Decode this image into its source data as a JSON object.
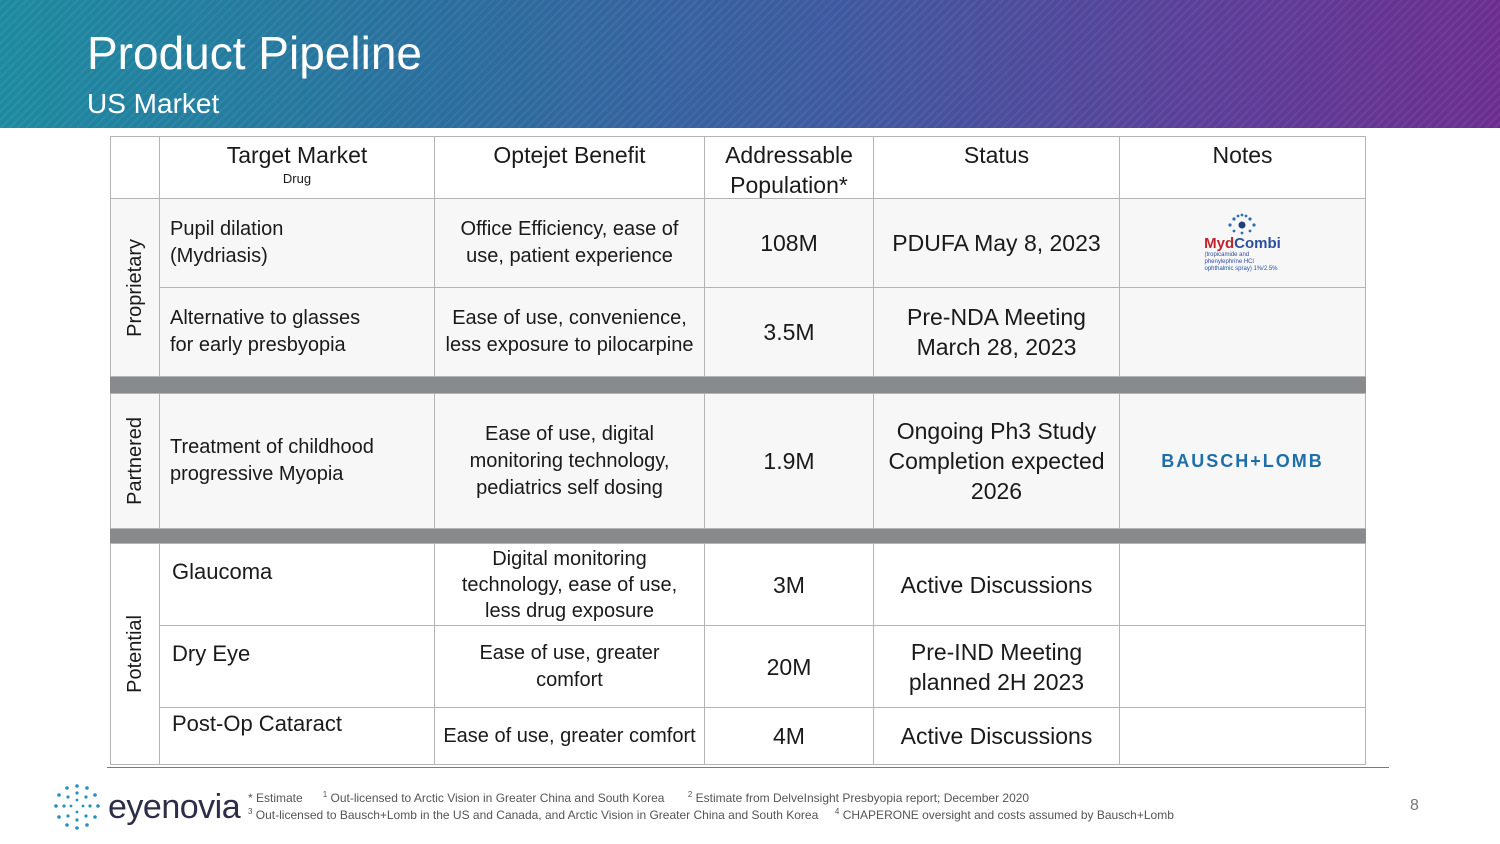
{
  "header": {
    "title": "Product Pipeline",
    "subtitle": "US Market"
  },
  "columns": {
    "target_market": "Target Market",
    "target_market_sub": "Drug",
    "optejet_benefit": "Optejet Benefit",
    "addressable_line1": "Addressable",
    "addressable_line2": "Population*",
    "status": "Status",
    "notes": "Notes"
  },
  "groups": {
    "proprietary": "Proprietary",
    "partnered": "Partnered",
    "potential": "Potential"
  },
  "rows": [
    {
      "target_l1": "Pupil dilation",
      "target_l2": "(Mydriasis)",
      "benefit_l1": "Office Efficiency, ease of",
      "benefit_l2": "use, patient experience",
      "population": "108M",
      "status": "PDUFA May 8, 2023"
    },
    {
      "target_l1": "Alternative to glasses",
      "target_l2": "for early presbyopia",
      "benefit_l1": "Ease of use, convenience,",
      "benefit_l2": "less exposure to pilocarpine",
      "population": "3.5M",
      "status_l1": "Pre-NDA Meeting",
      "status_l2": "March 28, 2023"
    },
    {
      "target_l1": "Treatment of childhood",
      "target_l2": "progressive Myopia",
      "benefit_l1": "Ease of use, digital",
      "benefit_l2": "monitoring technology,",
      "benefit_l3": "pediatrics self dosing",
      "population": "1.9M",
      "status_l1": "Ongoing Ph3 Study",
      "status_l2": "Completion expected",
      "status_l3": "2026"
    },
    {
      "target": "Glaucoma",
      "benefit_l1": "Digital monitoring",
      "benefit_l2": "technology, ease of use,",
      "benefit_l3": "less drug exposure",
      "population": "3M",
      "status": "Active Discussions"
    },
    {
      "target": "Dry Eye",
      "benefit_l1": "Ease of use, greater",
      "benefit_l2": "comfort",
      "population": "20M",
      "status_l1": "Pre-IND Meeting",
      "status_l2": "planned 2H 2023"
    },
    {
      "target": "Post-Op Cataract",
      "benefit": "Ease of use, greater comfort",
      "population": "4M",
      "status": "Active Discussions"
    }
  ],
  "logos": {
    "mydcombi_a": "Myd",
    "mydcombi_b": "Combi",
    "mydcombi_sub": "(tropicamide and phenylephrine HCl ophthalmic spray) 1%/2.5%",
    "bausch_lomb": "BAUSCH+LOMB"
  },
  "footer": {
    "estimate": "* Estimate",
    "n1": "Out-licensed to Arctic Vision in Greater China and South Korea",
    "n2": "Estimate from DelveInsight Presbyopia report; December 2020",
    "n3": "Out-licensed to Bausch+Lomb in the US and Canada, and Arctic Vision in Greater China and South Korea",
    "n4": "CHAPERONE oversight and costs assumed by Bausch+Lomb",
    "sup1": "1",
    "sup2": "2",
    "sup3": "3",
    "sup4": "4",
    "brand": "eyenovia",
    "page": "8"
  },
  "colors": {
    "header_start": "#1d8aa0",
    "header_end": "#6b2e90",
    "separator": "#888a8c"
  }
}
